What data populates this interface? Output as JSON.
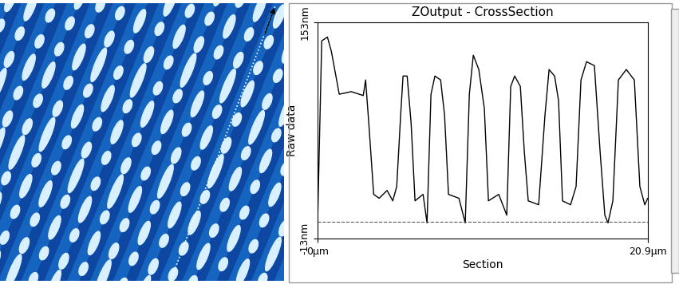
{
  "chart_data": {
    "type": "line",
    "title": "ZOutput - CrossSection",
    "x_label": "Section",
    "y_label": "Raw data",
    "x": [
      0,
      0.25,
      0.61,
      0.86,
      1.36,
      2.12,
      2.88,
      3.03,
      3.23,
      3.54,
      3.89,
      4.39,
      4.75,
      5.0,
      5.25,
      5.4,
      5.66,
      5.91,
      6.16,
      6.67,
      6.92,
      7.17,
      7.42,
      7.78,
      8.03,
      8.28,
      8.94,
      9.34,
      9.6,
      9.85,
      10.2,
      10.55,
      10.81,
      11.46,
      11.97,
      12.22,
      12.47,
      12.83,
      13.08,
      13.33,
      13.99,
      14.39,
      14.65,
      15.0,
      15.25,
      15.5,
      16.01,
      16.36,
      16.67,
      17.02,
      17.52,
      17.88,
      18.18,
      18.38,
      18.69,
      19.04,
      19.54,
      20.05,
      20.4,
      20.71,
      20.9
    ],
    "values": [
      5,
      139,
      142,
      131,
      98,
      100,
      97,
      109,
      76,
      21,
      18,
      24,
      16,
      27,
      82,
      112,
      112,
      76,
      16,
      21,
      -1,
      98,
      112,
      109,
      82,
      21,
      18,
      -1,
      98,
      128,
      117,
      87,
      16,
      21,
      5,
      104,
      112,
      104,
      54,
      16,
      13,
      82,
      117,
      112,
      93,
      16,
      13,
      27,
      109,
      123,
      120,
      54,
      5,
      -1,
      16,
      109,
      117,
      109,
      27,
      13,
      18
    ],
    "color": "#000000",
    "reference_line": 0,
    "xlim": [
      0,
      20.9
    ],
    "xticks": [
      {
        "value": 0,
        "label": "0µm"
      },
      {
        "value": 20.9,
        "label": "20.9µm"
      }
    ],
    "ylim": [
      -13,
      153
    ],
    "yticks": [
      {
        "value": -13,
        "label": "-13nm"
      },
      {
        "value": 153,
        "label": "153nm"
      }
    ],
    "grid": false
  }
}
